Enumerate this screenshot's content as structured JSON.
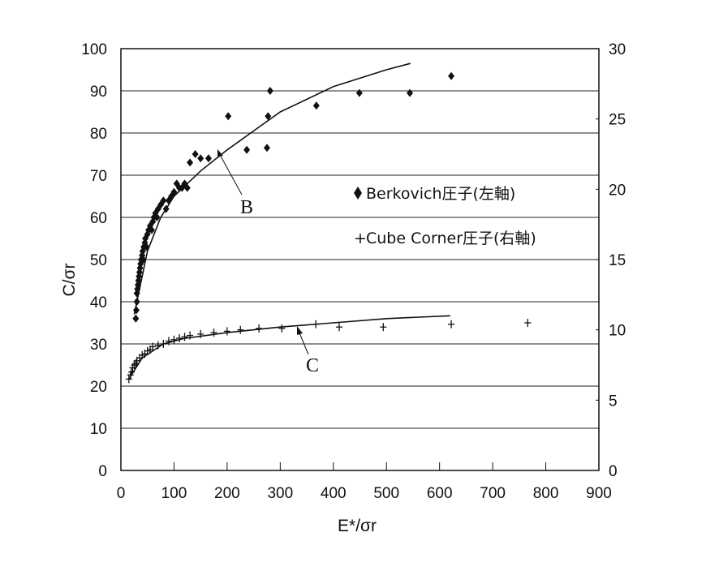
{
  "chart_data": {
    "type": "scatter",
    "title": "",
    "xlabel": "E*/σr",
    "ylabel": "C/σr",
    "y2label": "",
    "xlim": [
      0,
      900
    ],
    "ylim": [
      0,
      100
    ],
    "y2lim": [
      0,
      30
    ],
    "x_ticks": [
      "0",
      "100",
      "200",
      "300",
      "400",
      "500",
      "600",
      "700",
      "800",
      "900"
    ],
    "y_ticks": [
      "0",
      "10",
      "20",
      "30",
      "40",
      "50",
      "60",
      "70",
      "80",
      "90",
      "100"
    ],
    "y2_ticks": [
      "0",
      "5",
      "10",
      "15",
      "20",
      "25",
      "30"
    ],
    "grid": "horizontal",
    "legend_position": "inside-right",
    "legend": [
      {
        "marker": "♦",
        "label": "Berkovich圧子(左軸)"
      },
      {
        "marker": "+",
        "label": "Cube Corner圧子(右軸)"
      }
    ],
    "annotations": [
      {
        "text": "B",
        "target_x": 180,
        "target_y": 74
      },
      {
        "text": "C",
        "target_x": 325,
        "target_y": 10.2
      }
    ],
    "series": [
      {
        "name": "Berkovich圧子(左軸)",
        "axis": "left",
        "marker": "diamond",
        "points": [
          [
            28,
            36
          ],
          [
            29,
            38
          ],
          [
            30,
            40
          ],
          [
            30,
            42
          ],
          [
            31,
            43
          ],
          [
            32,
            44
          ],
          [
            33,
            45
          ],
          [
            34,
            46
          ],
          [
            35,
            47
          ],
          [
            36,
            48
          ],
          [
            37,
            49
          ],
          [
            38,
            50
          ],
          [
            40,
            51
          ],
          [
            41,
            52
          ],
          [
            42,
            50
          ],
          [
            43,
            53
          ],
          [
            45,
            54
          ],
          [
            46,
            55
          ],
          [
            48,
            53
          ],
          [
            50,
            56
          ],
          [
            52,
            57
          ],
          [
            55,
            58
          ],
          [
            58,
            57
          ],
          [
            60,
            59
          ],
          [
            62,
            60
          ],
          [
            65,
            61
          ],
          [
            68,
            60
          ],
          [
            70,
            62
          ],
          [
            75,
            63
          ],
          [
            80,
            64
          ],
          [
            85,
            62
          ],
          [
            90,
            64
          ],
          [
            95,
            65
          ],
          [
            100,
            66
          ],
          [
            105,
            68
          ],
          [
            110,
            67
          ],
          [
            115,
            67
          ],
          [
            120,
            68
          ],
          [
            125,
            67
          ],
          [
            130,
            73
          ],
          [
            140,
            75
          ],
          [
            150,
            74
          ],
          [
            165,
            74
          ],
          [
            202,
            84
          ],
          [
            237,
            76
          ],
          [
            275,
            76.5
          ],
          [
            277,
            84
          ],
          [
            281,
            90
          ],
          [
            368,
            86.5
          ],
          [
            449,
            89.5
          ],
          [
            544,
            89.5
          ],
          [
            622,
            93.5
          ]
        ],
        "fit_curve": [
          [
            25,
            37
          ],
          [
            50,
            52
          ],
          [
            75,
            60
          ],
          [
            100,
            65
          ],
          [
            150,
            71
          ],
          [
            200,
            76
          ],
          [
            250,
            80.5
          ],
          [
            300,
            85
          ],
          [
            350,
            88
          ],
          [
            400,
            91
          ],
          [
            450,
            93
          ],
          [
            500,
            95
          ],
          [
            545,
            96.5
          ]
        ]
      },
      {
        "name": "Cube Corner圧子(右軸)",
        "axis": "right",
        "marker": "plus",
        "points": [
          [
            15,
            6.5
          ],
          [
            18,
            6.8
          ],
          [
            20,
            7.0
          ],
          [
            22,
            7.3
          ],
          [
            25,
            7.5
          ],
          [
            28,
            7.6
          ],
          [
            30,
            7.8
          ],
          [
            35,
            8.0
          ],
          [
            40,
            8.2
          ],
          [
            45,
            8.3
          ],
          [
            50,
            8.5
          ],
          [
            55,
            8.6
          ],
          [
            60,
            8.8
          ],
          [
            70,
            8.9
          ],
          [
            80,
            9.0
          ],
          [
            90,
            9.2
          ],
          [
            100,
            9.3
          ],
          [
            110,
            9.4
          ],
          [
            120,
            9.5
          ],
          [
            130,
            9.6
          ],
          [
            150,
            9.7
          ],
          [
            175,
            9.8
          ],
          [
            200,
            9.9
          ],
          [
            225,
            10.0
          ],
          [
            260,
            10.1
          ],
          [
            303,
            10.1
          ],
          [
            367,
            10.4
          ],
          [
            411,
            10.2
          ],
          [
            494,
            10.2
          ],
          [
            622,
            10.4
          ],
          [
            766,
            10.5
          ]
        ],
        "fit_curve": [
          [
            15,
            6.5
          ],
          [
            40,
            8.0
          ],
          [
            80,
            9.0
          ],
          [
            120,
            9.4
          ],
          [
            200,
            9.8
          ],
          [
            300,
            10.2
          ],
          [
            400,
            10.5
          ],
          [
            500,
            10.8
          ],
          [
            620,
            11.0
          ]
        ]
      }
    ]
  }
}
